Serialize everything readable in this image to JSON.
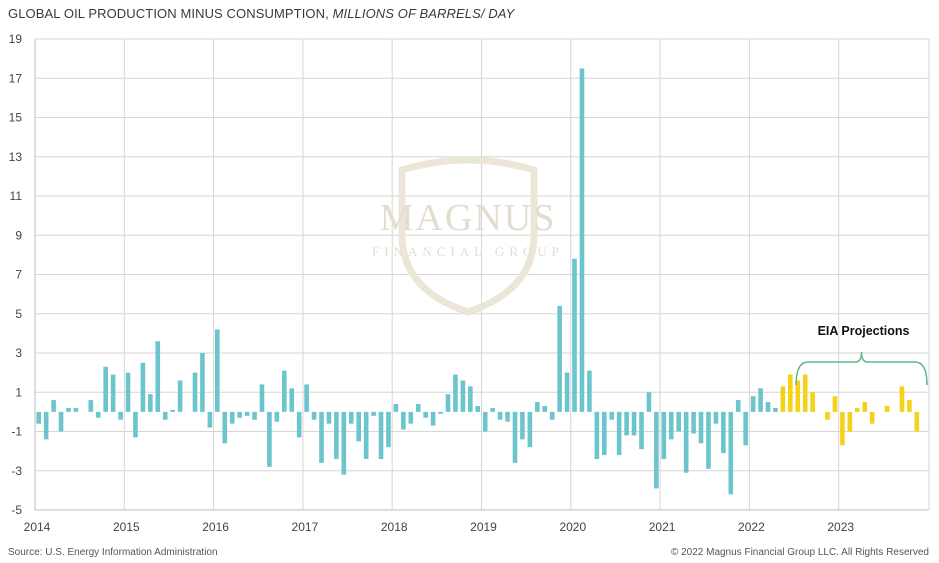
{
  "header": {
    "title_main": "GLOBAL OIL PRODUCTION MINUS CONSUMPTION, ",
    "title_units": "MILLIONS OF BARRELS/ DAY"
  },
  "footer": {
    "source": "Source: U.S. Energy Information Administration",
    "copyright": "© 2022 Magnus Financial Group LLC. All Rights Reserved"
  },
  "watermark": {
    "name": "MAGNUS",
    "tagline": "FINANCIAL GROUP"
  },
  "chart_data": {
    "type": "bar",
    "title": "GLOBAL OIL PRODUCTION MINUS CONSUMPTION, MILLIONS OF BARRELS/ DAY",
    "xlabel": "",
    "ylabel": "",
    "ylim": [
      -5,
      19
    ],
    "yticks": [
      19,
      17,
      15,
      13,
      11,
      9,
      7,
      5,
      3,
      1,
      -1,
      -3,
      -5
    ],
    "xticks": [
      "2014",
      "2015",
      "2016",
      "2017",
      "2018",
      "2019",
      "2020",
      "2021",
      "2022",
      "2023"
    ],
    "grid": true,
    "x_start": "2014-01",
    "frequency": "monthly",
    "colors": {
      "actual": "#6cc5cc",
      "projection": "#f5d219",
      "annotation": "#5bb88a"
    },
    "annotation": {
      "label": "EIA Projections",
      "from": "2022-07",
      "to": "2023-12"
    },
    "series": [
      {
        "values": [
          -0.6,
          -1.4,
          0.6,
          -1.0,
          0.2,
          0.2,
          0.0,
          0.6,
          -0.3,
          2.3,
          1.9,
          -0.4,
          2.0,
          -1.3,
          2.5,
          0.9,
          3.6,
          -0.4,
          0.1,
          1.6,
          0.0,
          2.0,
          3.0,
          -0.8,
          4.2,
          -1.6,
          -0.6,
          -0.3,
          -0.2,
          -0.4,
          1.4,
          -2.8,
          -0.5,
          2.1,
          1.2,
          -1.3,
          1.4,
          -0.4,
          -2.6,
          -0.6,
          -2.4,
          -3.2,
          -0.6,
          -1.5,
          -2.4,
          -0.2,
          -2.4,
          -1.8,
          0.4,
          -0.9,
          -0.6,
          0.4,
          -0.3,
          -0.7,
          -0.1,
          0.9,
          1.9,
          1.6,
          1.3,
          0.3,
          -1.0,
          0.2,
          -0.4,
          -0.5,
          -2.6,
          -1.4,
          -1.8,
          0.5,
          0.3,
          -0.4,
          5.4,
          2.0,
          7.8,
          17.5,
          2.1,
          -2.4,
          -2.2,
          -0.4,
          -2.2,
          -1.2,
          -1.2,
          -1.9,
          1.0,
          -3.9,
          -2.4,
          -1.4,
          -1.0,
          -3.1,
          -1.1,
          -1.6,
          -2.9,
          -0.6,
          -2.1,
          -4.2,
          0.6,
          -1.7,
          0.8,
          1.2,
          0.5,
          0.2
        ]
      },
      {
        "values": [
          1.3,
          1.9,
          1.6,
          1.9,
          1.0,
          0.0,
          -0.4,
          0.8,
          -1.7,
          -1.0,
          0.2,
          0.5,
          -0.6,
          0.0,
          0.3,
          0.0,
          1.3,
          0.6,
          -1.0
        ]
      }
    ]
  }
}
